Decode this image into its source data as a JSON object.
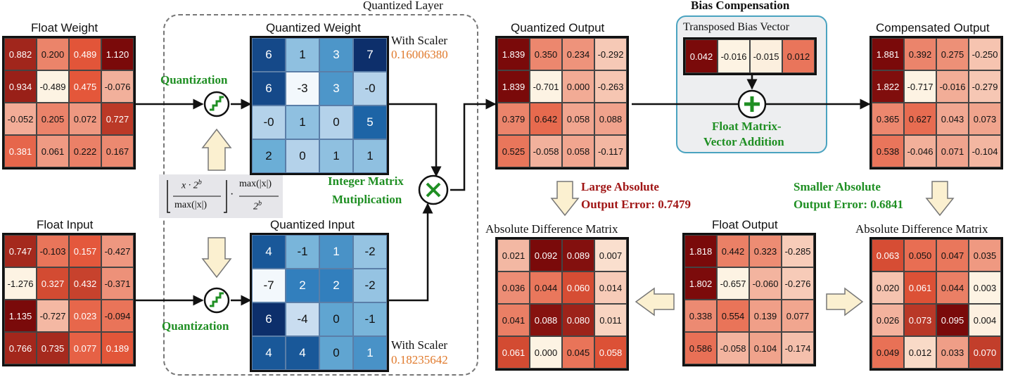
{
  "labels": {
    "quantized_layer": "Quantized Layer",
    "bias_compensation": "Bias Compensation",
    "float_weight": "Float Weight",
    "float_input": "Float Input",
    "quantized_weight": "Quantized Weight",
    "quantized_input": "Quantized Input",
    "quantized_output": "Quantized Output",
    "transposed_bias": "Transposed Bias Vector",
    "compensated_output": "Compensated Output",
    "abs_diff_left": "Absolute Difference Matrix",
    "abs_diff_right": "Absolute Difference Matrix",
    "float_output": "Float Output",
    "quantization_top": "Quantization",
    "quantization_bottom": "Quantization",
    "integer_mult_1": "Integer Matrix",
    "integer_mult_2": "Mutiplication",
    "float_add_1": "Float Matrix-",
    "float_add_2": "Vector Addition",
    "large_err_1": "Large Absolute",
    "large_err_2": "Output Error: 0.7479",
    "small_err_1": "Smaller Absolute",
    "small_err_2": "Output Error: 0.6841",
    "with_scaler_w": "With Scaler",
    "scaler_w": "0.16006380",
    "with_scaler_i": "With Scaler",
    "scaler_i": "0.18235642",
    "formula_num1": "x · 2",
    "formula_den1": "max(|x|)",
    "formula_num2": "max(|x|)",
    "formula_den2": "2",
    "formula_exp": "b",
    "formula_dot": "·"
  },
  "matrices": {
    "float_weight": [
      [
        "0.882",
        "0.200",
        "0.489",
        "1.120"
      ],
      [
        "0.934",
        "-0.489",
        "0.475",
        "-0.076"
      ],
      [
        "-0.052",
        "0.205",
        "0.072",
        "0.727"
      ],
      [
        "0.381",
        "0.061",
        "0.222",
        "0.167"
      ]
    ],
    "float_input": [
      [
        "0.747",
        "-0.103",
        "0.157",
        "-0.427"
      ],
      [
        "-1.276",
        "0.327",
        "0.432",
        "-0.371"
      ],
      [
        "1.135",
        "-0.727",
        "0.023",
        "-0.094"
      ],
      [
        "0.766",
        "0.735",
        "0.077",
        "0.189"
      ]
    ],
    "quantized_weight": [
      [
        "6",
        "1",
        "3",
        "7"
      ],
      [
        "6",
        "-3",
        "3",
        "-0"
      ],
      [
        "-0",
        "1",
        "0",
        "5"
      ],
      [
        "2",
        "0",
        "1",
        "1"
      ]
    ],
    "quantized_input": [
      [
        "4",
        "-1",
        "1",
        "-2"
      ],
      [
        "-7",
        "2",
        "2",
        "-2"
      ],
      [
        "6",
        "-4",
        "0",
        "-1"
      ],
      [
        "4",
        "4",
        "0",
        "1"
      ]
    ],
    "quantized_output": [
      [
        "1.839",
        "0.350",
        "0.234",
        "-0.292"
      ],
      [
        "1.839",
        "-0.701",
        "0.000",
        "-0.263"
      ],
      [
        "0.379",
        "0.642",
        "0.058",
        "0.088"
      ],
      [
        "0.525",
        "-0.058",
        "0.058",
        "-0.117"
      ]
    ],
    "bias_vector": [
      [
        "0.042",
        "-0.016",
        "-0.015",
        "0.012"
      ]
    ],
    "compensated_output": [
      [
        "1.881",
        "0.392",
        "0.275",
        "-0.250"
      ],
      [
        "1.822",
        "-0.717",
        "-0.016",
        "-0.279"
      ],
      [
        "0.365",
        "0.627",
        "0.043",
        "0.073"
      ],
      [
        "0.538",
        "-0.046",
        "0.071",
        "-0.104"
      ]
    ],
    "abs_diff_left": [
      [
        "0.021",
        "0.092",
        "0.089",
        "0.007"
      ],
      [
        "0.036",
        "0.044",
        "0.060",
        "0.014"
      ],
      [
        "0.041",
        "0.088",
        "0.080",
        "0.011"
      ],
      [
        "0.061",
        "0.000",
        "0.045",
        "0.058"
      ]
    ],
    "float_output": [
      [
        "1.818",
        "0.442",
        "0.323",
        "-0.285"
      ],
      [
        "1.802",
        "-0.657",
        "-0.060",
        "-0.276"
      ],
      [
        "0.338",
        "0.554",
        "0.139",
        "0.077"
      ],
      [
        "0.586",
        "-0.058",
        "0.104",
        "-0.174"
      ]
    ],
    "abs_diff_right": [
      [
        "0.063",
        "0.050",
        "0.047",
        "0.035"
      ],
      [
        "0.020",
        "0.061",
        "0.044",
        "0.003"
      ],
      [
        "0.026",
        "0.073",
        "0.095",
        "0.004"
      ],
      [
        "0.049",
        "0.012",
        "0.033",
        "0.070"
      ]
    ]
  },
  "colors": {
    "float_dark": "#7a0a0a",
    "float_mid": "#e4573a",
    "float_light": "#fdf3e3",
    "quant_dark": "#0d2f6b",
    "quant_light": "#f3f8fc",
    "accent_green": "#1f8f23",
    "accent_red": "#a01515",
    "accent_orange": "#e0792b",
    "bias_border": "#4aa3c0",
    "arrow_fill": "#fbf0d0"
  }
}
